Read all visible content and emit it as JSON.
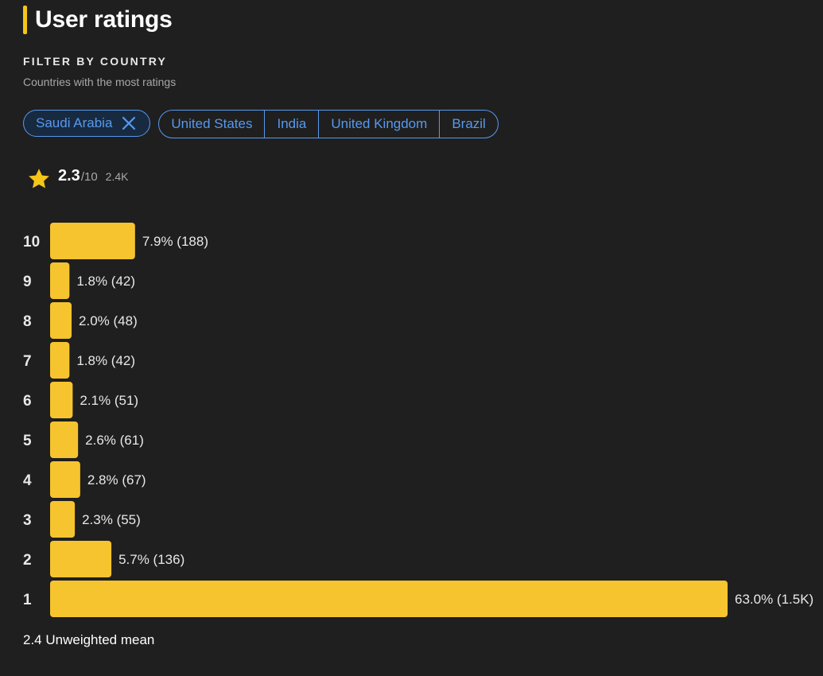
{
  "header": {
    "title": "User ratings"
  },
  "filter": {
    "title": "FILTER BY COUNTRY",
    "subtitle": "Countries with the most ratings",
    "selected": "Saudi Arabia",
    "options": [
      "United States",
      "India",
      "United Kingdom",
      "Brazil"
    ]
  },
  "summary": {
    "rating": "2.3",
    "max": "/10",
    "count": "2.4K"
  },
  "colors": {
    "accent": "#f5c518",
    "bar": "#f6c42e",
    "link": "#5799ef",
    "background": "#1f1f1f"
  },
  "icons": {
    "star": "star-icon",
    "close": "close-icon"
  },
  "chart_data": {
    "type": "bar",
    "orientation": "horizontal",
    "categories": [
      "10",
      "9",
      "8",
      "7",
      "6",
      "5",
      "4",
      "3",
      "2",
      "1"
    ],
    "values": [
      7.9,
      1.8,
      2.0,
      1.8,
      2.1,
      2.6,
      2.8,
      2.3,
      5.7,
      63.0
    ],
    "labels": [
      "7.9% (188)",
      "1.8% (42)",
      "2.0% (48)",
      "1.8% (42)",
      "2.1% (51)",
      "2.6% (61)",
      "2.8% (67)",
      "2.3% (55)",
      "5.7% (136)",
      "63.0% (1.5K)"
    ],
    "title": "",
    "xlabel": "",
    "ylabel": "",
    "xlim": [
      0,
      63.0
    ],
    "grid": false,
    "legend": "none"
  },
  "footer": {
    "mean": "2.4 Unweighted mean"
  }
}
